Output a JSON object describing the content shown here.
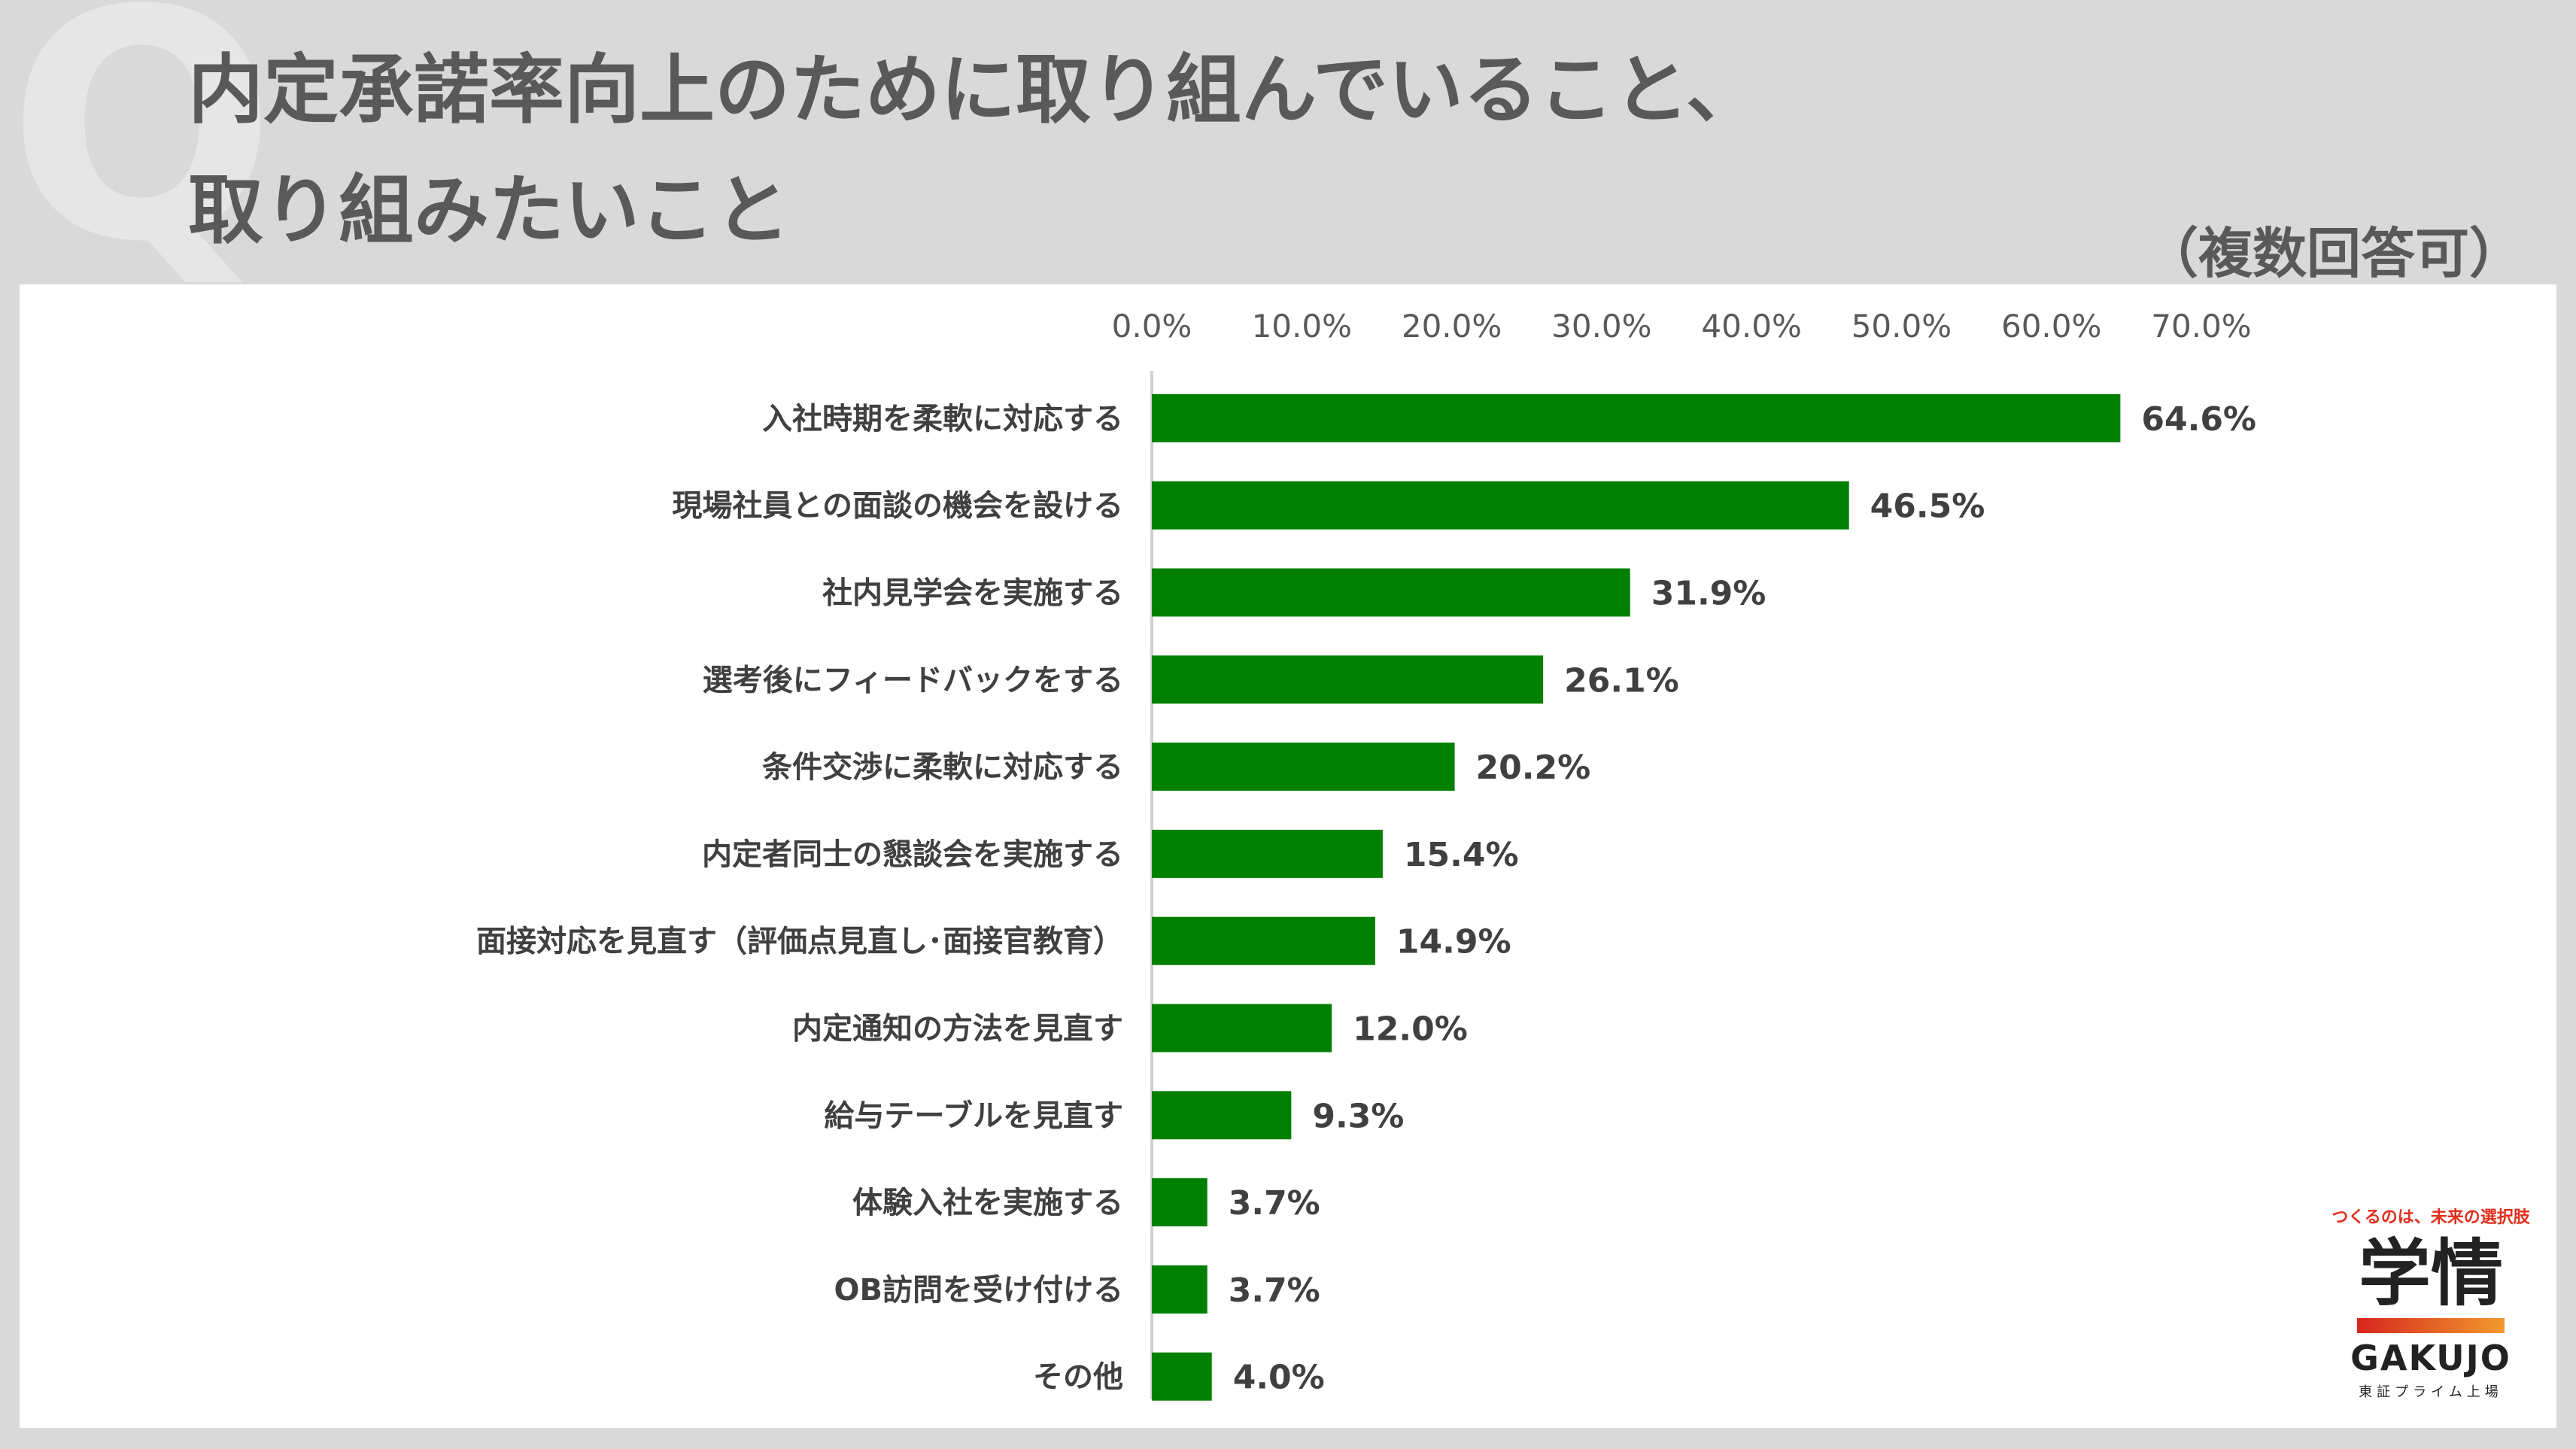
{
  "header": {
    "background_glyph": "Q",
    "title_line1": "内定承諾率向上のために取り組んでいること、",
    "title_line2": "取り組みたいこと",
    "note": "（複数回答可）"
  },
  "logo": {
    "tagline": "つくるのは、未来の選択肢",
    "name": "学情",
    "name_en": "GAKUJO",
    "sub": "東証プライム上場"
  },
  "colors": {
    "bar": "#008000",
    "axis_text": "#595959",
    "label_text": "#404040",
    "background": "#d9d9d9"
  },
  "chart_data": {
    "type": "bar",
    "orientation": "horizontal",
    "title": "",
    "xlabel": "",
    "ylabel": "",
    "xlim": [
      0,
      70
    ],
    "ticks": [
      "0.0%",
      "10.0%",
      "20.0%",
      "30.0%",
      "40.0%",
      "50.0%",
      "60.0%",
      "70.0%"
    ],
    "grid": false,
    "axis_position": "top",
    "categories": [
      "入社時期を柔軟に対応する",
      "現場社員との面談の機会を設ける",
      "社内見学会を実施する",
      "選考後にフィードバックをする",
      "条件交渉に柔軟に対応する",
      "内定者同士の懇談会を実施する",
      "面接対応を見直す（評価点見直し･面接官教育）",
      "内定通知の方法を見直す",
      "給与テーブルを見直す",
      "体験入社を実施する",
      "OB訪問を受け付ける",
      "その他"
    ],
    "values": [
      64.6,
      46.5,
      31.9,
      26.1,
      20.2,
      15.4,
      14.9,
      12.0,
      9.3,
      3.7,
      3.7,
      4.0
    ],
    "value_labels": [
      "64.6%",
      "46.5%",
      "31.9%",
      "26.1%",
      "20.2%",
      "15.4%",
      "14.9%",
      "12.0%",
      "9.3%",
      "3.7%",
      "3.7%",
      "4.0%"
    ]
  }
}
